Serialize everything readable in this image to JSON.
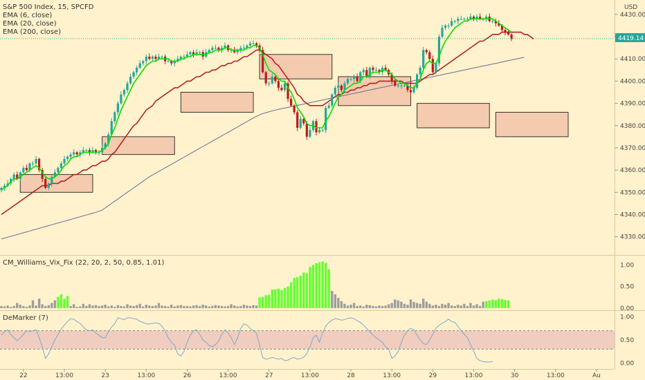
{
  "chart_data": {
    "type": "candlestick",
    "title": "S&P 500 Index, 15, SPCFD",
    "currency": "USD",
    "colors": {
      "background": "#FFF2CC",
      "up": "#26A69A",
      "down": "#B71C1C",
      "ema6": "#00E000",
      "ema20": "#B22222",
      "ema200": "#6A6A9A",
      "zone_fill": "#F2C4A8",
      "indicator_gray": "#9E9E9E",
      "indicator_green": "#66FF33",
      "demarker_line": "#7BAAD0",
      "demarker_band": "#E6B4B4",
      "last_price_label": "#26A69A"
    },
    "price_axis": {
      "ylim": [
        4324,
        4434
      ],
      "ticks": [
        "4430.00",
        "4420.00",
        "4410.00",
        "4400.00",
        "4390.00",
        "4380.00",
        "4370.00",
        "4360.00",
        "4350.00",
        "4340.00",
        "4330.00"
      ],
      "last_price": "4419.14"
    },
    "legend": [
      "EMA (6, close)",
      "EMA (20, close)",
      "EMA (200, close)"
    ],
    "x_ticks": [
      "22",
      "13:00",
      "23",
      "13:00",
      "26",
      "13:00",
      "27",
      "13:00",
      "28",
      "13:00",
      "29",
      "13:00",
      "30",
      "13:00",
      "Au"
    ],
    "x_tick_bar_index": [
      7,
      20,
      33,
      46,
      59,
      72,
      85,
      98,
      111,
      124,
      137,
      150,
      163,
      176,
      189
    ],
    "close": [
      4352,
      4353,
      4354,
      4356,
      4358,
      4356,
      4359,
      4361,
      4360,
      4363,
      4363,
      4365,
      4360,
      4356,
      4352,
      4354,
      4357,
      4359,
      4361,
      4363,
      4365,
      4366,
      4367,
      4368,
      4367,
      4368,
      4369,
      4369,
      4368,
      4369,
      4368,
      4368,
      4370,
      4372,
      4376,
      4382,
      4386,
      4390,
      4394,
      4396,
      4399,
      4402,
      4404,
      4406,
      4408,
      4409,
      4411,
      4410,
      4411,
      4410,
      4411,
      4411,
      4409,
      4409,
      4408,
      4409,
      4410,
      4411,
      4411,
      4412,
      4413,
      4412,
      4413,
      4413,
      4411,
      4413,
      4414,
      4415,
      4415,
      4414,
      4415,
      4416,
      4414,
      4414,
      4413,
      4414,
      4415,
      4415,
      4416,
      4417,
      4417,
      4416,
      4414,
      4404,
      4399,
      4399,
      4402,
      4400,
      4397,
      4396,
      4399,
      4392,
      4389,
      4386,
      4379,
      4383,
      4381,
      4375,
      4378,
      4382,
      4377,
      4378,
      4378,
      4388,
      4389,
      4394,
      4397,
      4398,
      4396,
      4399,
      4401,
      4401,
      4402,
      4400,
      4404,
      4405,
      4402,
      4406,
      4405,
      4405,
      4404,
      4406,
      4405,
      4403,
      4400,
      4398,
      4398,
      4398,
      4398,
      4396,
      4395,
      4397,
      4403,
      4406,
      4414,
      4413,
      4410,
      4404,
      4408,
      4420,
      4424,
      4425,
      4425,
      4427,
      4427,
      4428,
      4428,
      4428,
      4428,
      4429,
      4428,
      4429,
      4428,
      4428,
      4429,
      4427,
      4427,
      4426,
      4425,
      4423,
      4422,
      4421,
      4419
    ],
    "ema6": [
      4351,
      4352,
      4353,
      4355,
      4356,
      4356,
      4357,
      4358,
      4359,
      4360,
      4361,
      4362,
      4361,
      4359,
      4357,
      4356,
      4356,
      4357,
      4358,
      4360,
      4362,
      4363,
      4365,
      4366,
      4366,
      4367,
      4368,
      4368,
      4368,
      4368,
      4368,
      4368,
      4369,
      4370,
      4372,
      4376,
      4379,
      4383,
      4387,
      4390,
      4393,
      4396,
      4399,
      4401,
      4403,
      4405,
      4407,
      4408,
      4409,
      4409,
      4410,
      4410,
      4410,
      4410,
      4409,
      4409,
      4409,
      4410,
      4410,
      4411,
      4411,
      4412,
      4412,
      4412,
      4412,
      4412,
      4413,
      4413,
      4414,
      4414,
      4414,
      4415,
      4415,
      4414,
      4414,
      4414,
      4414,
      4414,
      4415,
      4415,
      4416,
      4416,
      4415,
      4412,
      4408,
      4405,
      4404,
      4403,
      4401,
      4400,
      4400,
      4397,
      4395,
      4392,
      4388,
      4386,
      4384,
      4381,
      4380,
      4380,
      4379,
      4379,
      4379,
      4382,
      4384,
      4387,
      4390,
      4393,
      4394,
      4396,
      4397,
      4398,
      4399,
      4399,
      4400,
      4402,
      4402,
      4403,
      4404,
      4404,
      4404,
      4405,
      4405,
      4404,
      4403,
      4401,
      4400,
      4399,
      4399,
      4398,
      4397,
      4397,
      4399,
      4401,
      4405,
      4408,
      4409,
      4408,
      4408,
      4411,
      4415,
      4418,
      4420,
      4422,
      4424,
      4425,
      4426,
      4427,
      4427,
      4428,
      4428,
      4428,
      4428,
      4428,
      4428,
      4428,
      4428,
      4427,
      4426,
      4425,
      4424,
      4423,
      4422
    ],
    "ema20": [
      4340,
      4341,
      4342,
      4343,
      4344,
      4345,
      4346,
      4347,
      4348,
      4349,
      4350,
      4351,
      4352,
      4353,
      4353,
      4353,
      4354,
      4354,
      4354,
      4355,
      4355,
      4356,
      4357,
      4358,
      4358,
      4359,
      4360,
      4360,
      4361,
      4362,
      4362,
      4363,
      4364,
      4364,
      4365,
      4367,
      4368,
      4370,
      4372,
      4374,
      4376,
      4378,
      4380,
      4381,
      4383,
      4385,
      4387,
      4388,
      4389,
      4391,
      4392,
      4393,
      4394,
      4395,
      4396,
      4397,
      4397,
      4398,
      4399,
      4400,
      4400,
      4401,
      4402,
      4402,
      4403,
      4404,
      4404,
      4405,
      4405,
      4406,
      4407,
      4407,
      4408,
      4408,
      4409,
      4409,
      4410,
      4411,
      4411,
      4412,
      4413,
      4414,
      4414,
      4413,
      4412,
      4411,
      4410,
      4408,
      4407,
      4405,
      4403,
      4401,
      4399,
      4397,
      4394,
      4393,
      4391,
      4390,
      4389,
      4389,
      4389,
      4389,
      4389,
      4390,
      4391,
      4392,
      4393,
      4394,
      4394,
      4395,
      4395,
      4396,
      4396,
      4397,
      4397,
      4398,
      4398,
      4399,
      4399,
      4399,
      4400,
      4400,
      4400,
      4400,
      4400,
      4400,
      4400,
      4400,
      4399,
      4399,
      4399,
      4399,
      4399,
      4400,
      4401,
      4402,
      4403,
      4403,
      4404,
      4405,
      4406,
      4407,
      4408,
      4409,
      4410,
      4411,
      4412,
      4413,
      4414,
      4415,
      4416,
      4417,
      4418,
      4418,
      4419,
      4420,
      4421,
      4421,
      4421,
      4422,
      4422,
      4422,
      4422
    ],
    "ema200": [
      4329,
      4329.4,
      4329.8,
      4330.2,
      4330.6,
      4331,
      4331.4,
      4331.8,
      4332.2,
      4332.6,
      4333,
      4333.4,
      4333.8,
      4334.2,
      4334.6,
      4335,
      4335.4,
      4335.8,
      4336.2,
      4336.6,
      4337,
      4337.4,
      4337.8,
      4338.2,
      4338.6,
      4339,
      4339.4,
      4339.8,
      4340.2,
      4340.6,
      4341,
      4341.5,
      4342,
      4343,
      4344,
      4345,
      4346,
      4347,
      4348,
      4349,
      4350,
      4351,
      4352,
      4353,
      4354,
      4355,
      4356,
      4357,
      4357.8,
      4358.6,
      4359.4,
      4360.2,
      4361,
      4361.8,
      4362.6,
      4363.4,
      4364.2,
      4365,
      4365.8,
      4366.6,
      4367.4,
      4368.2,
      4369,
      4369.8,
      4370.6,
      4371.4,
      4372.2,
      4373,
      4373.8,
      4374.6,
      4375.4,
      4376.2,
      4377,
      4377.8,
      4378.6,
      4379.4,
      4380.2,
      4381,
      4381.8,
      4382.6,
      4383.4,
      4384.2,
      4384.8,
      4385.4,
      4385.8,
      4386.2,
      4386.6,
      4387,
      4387.3,
      4387.6,
      4387.9,
      4388.2,
      4388.5,
      4388.8,
      4389.1,
      4389.4,
      4389.7,
      4390,
      4390.3,
      4390.6,
      4390.9,
      4391.2,
      4391.5,
      4391.8,
      4392.1,
      4392.4,
      4392.7,
      4393,
      4393.3,
      4393.6,
      4393.9,
      4394.2,
      4394.5,
      4394.8,
      4395.1,
      4395.4,
      4395.7,
      4396,
      4396.3,
      4396.6,
      4396.9,
      4397.2,
      4397.5,
      4397.8,
      4398.1,
      4398.4,
      4398.7,
      4399,
      4399.3,
      4399.6,
      4399.9,
      4400.2,
      4400.5,
      4400.8,
      4401.1,
      4401.4,
      4401.7,
      4402,
      4402.3,
      4402.6,
      4402.9,
      4403.2,
      4403.5,
      4403.8,
      4404.1,
      4404.4,
      4404.7,
      4405,
      4405.3,
      4405.6,
      4405.9,
      4406.2,
      4406.5,
      4406.8,
      4407.1,
      4407.4,
      4407.7,
      4408,
      4408.3,
      4408.6,
      4408.9,
      4409.2,
      4409.5,
      4409.8,
      4410.1,
      4410.4,
      4410.7
    ],
    "zones": [
      {
        "x0": 6,
        "x1": 29,
        "low": 4350,
        "high": 4358
      },
      {
        "x0": 32,
        "x1": 55,
        "low": 4367,
        "high": 4375
      },
      {
        "x0": 57,
        "x1": 80,
        "low": 4386,
        "high": 4395
      },
      {
        "x0": 82,
        "x1": 105,
        "low": 4401,
        "high": 4412
      },
      {
        "x0": 107,
        "x1": 130,
        "low": 4389,
        "high": 4402
      },
      {
        "x0": 132,
        "x1": 155,
        "low": 4379,
        "high": 4390
      },
      {
        "x0": 157,
        "x1": 180,
        "low": 4375,
        "high": 4386
      }
    ],
    "ema200_tail": {
      "from": 162,
      "to": 168
    },
    "ema20_tail": [
      4422,
      4422,
      4422,
      4421,
      4421,
      4420,
      4419
    ],
    "williams_vix_fix": {
      "label": "CM_Williams_Vix_Fix (22, 20, 2, 50, 0.85, 1.01)",
      "ylim": [
        0,
        1.15
      ],
      "ticks": [
        "1.00",
        "0.50",
        "0.00"
      ],
      "values": [
        0.05,
        0.04,
        0.06,
        0.03,
        0.05,
        0.12,
        0.08,
        0.05,
        0.03,
        0.06,
        0.18,
        0.06,
        0.22,
        0.09,
        0.05,
        0.07,
        0.12,
        0.18,
        0.26,
        0.32,
        0.22,
        0.28,
        0.05,
        0.09,
        0.03,
        0.04,
        0.1,
        0.05,
        0.09,
        0.06,
        0.07,
        0.05,
        0.06,
        0.08,
        0.04,
        0.06,
        0.03,
        0.07,
        0.05,
        0.04,
        0.09,
        0.06,
        0.05,
        0.07,
        0.1,
        0.04,
        0.08,
        0.06,
        0.05,
        0.06,
        0.12,
        0.06,
        0.05,
        0.04,
        0.08,
        0.04,
        0.06,
        0.07,
        0.05,
        0.05,
        0.04,
        0.06,
        0.07,
        0.05,
        0.08,
        0.06,
        0.04,
        0.05,
        0.07,
        0.06,
        0.05,
        0.04,
        0.05,
        0.09,
        0.06,
        0.04,
        0.05,
        0.08,
        0.06,
        0.05,
        0.07,
        0.06,
        0.25,
        0.26,
        0.3,
        0.31,
        0.43,
        0.44,
        0.45,
        0.42,
        0.47,
        0.5,
        0.6,
        0.7,
        0.72,
        0.75,
        0.82,
        0.81,
        0.95,
        1.0,
        1.04,
        1.06,
        1.08,
        1.05,
        0.9,
        0.4,
        0.32,
        0.24,
        0.16,
        0.1,
        0.06,
        0.08,
        0.12,
        0.05,
        0.06,
        0.04,
        0.08,
        0.07,
        0.05,
        0.04,
        0.06,
        0.05,
        0.06,
        0.09,
        0.12,
        0.2,
        0.18,
        0.15,
        0.1,
        0.08,
        0.2,
        0.14,
        0.12,
        0.1,
        0.22,
        0.15,
        0.1,
        0.06,
        0.08,
        0.05,
        0.1,
        0.08,
        0.12,
        0.06,
        0.05,
        0.08,
        0.06,
        0.1,
        0.05,
        0.12,
        0.06,
        0.09,
        0.05,
        0.15,
        0.16,
        0.18,
        0.2,
        0.19,
        0.22,
        0.21,
        0.19,
        0.18
      ],
      "green_ranges": [
        [
          18,
          21
        ],
        [
          82,
          104
        ],
        [
          154,
          162
        ]
      ]
    },
    "demarker": {
      "label": "DeMarker (7)",
      "ylim": [
        -0.1,
        1.1
      ],
      "ticks": [
        "1.00",
        "0.50",
        "0.00"
      ],
      "band": [
        0.3,
        0.7
      ],
      "values": [
        0.6,
        0.68,
        0.72,
        0.62,
        0.55,
        0.48,
        0.55,
        0.62,
        0.7,
        0.68,
        0.7,
        0.72,
        0.55,
        0.35,
        0.1,
        0.2,
        0.35,
        0.5,
        0.62,
        0.74,
        0.82,
        0.9,
        0.96,
        0.95,
        0.9,
        0.86,
        0.78,
        0.72,
        0.7,
        0.72,
        0.65,
        0.6,
        0.55,
        0.55,
        0.68,
        0.78,
        0.85,
        0.98,
        0.96,
        0.94,
        0.98,
        0.98,
        0.96,
        0.95,
        0.9,
        0.88,
        0.85,
        0.85,
        0.86,
        0.87,
        0.86,
        0.8,
        0.7,
        0.55,
        0.45,
        0.38,
        0.2,
        0.15,
        0.25,
        0.45,
        0.6,
        0.7,
        0.72,
        0.62,
        0.5,
        0.45,
        0.38,
        0.35,
        0.4,
        0.48,
        0.62,
        0.72,
        0.65,
        0.55,
        0.4,
        0.55,
        0.75,
        0.85,
        0.82,
        0.75,
        0.7,
        0.65,
        0.38,
        0.12,
        0.08,
        0.1,
        0.12,
        0.1,
        0.08,
        0.1,
        0.05,
        0.06,
        0.1,
        0.12,
        0.08,
        0.1,
        0.12,
        0.2,
        0.35,
        0.55,
        0.6,
        0.45,
        0.65,
        0.8,
        0.88,
        0.93,
        0.96,
        0.95,
        0.93,
        0.94,
        0.97,
        0.98,
        0.96,
        0.92,
        0.88,
        0.82,
        0.75,
        0.68,
        0.6,
        0.55,
        0.5,
        0.45,
        0.35,
        0.3,
        0.1,
        0.15,
        0.25,
        0.45,
        0.6,
        0.7,
        0.75,
        0.72,
        0.6,
        0.5,
        0.42,
        0.4,
        0.5,
        0.62,
        0.75,
        0.82,
        0.86,
        0.9,
        0.95,
        0.9,
        0.88,
        0.8,
        0.7,
        0.62,
        0.55,
        0.4,
        0.25,
        0.1,
        0.05,
        0.03,
        0.02,
        0.02,
        0.03
      ]
    }
  }
}
